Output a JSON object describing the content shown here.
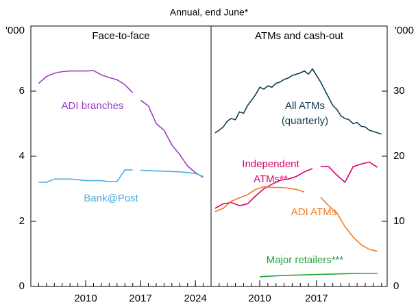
{
  "subtitle": "Annual, end June*",
  "chart_data": [
    {
      "type": "line",
      "title": "Face-to-face",
      "unit": "'000",
      "xlim": [
        2003,
        2026
      ],
      "xticks": [
        2010,
        2017,
        2024
      ],
      "ylim": [
        0,
        8
      ],
      "yticks": [
        0,
        2,
        4,
        6
      ],
      "x": [
        2004,
        2005,
        2006,
        2007,
        2008,
        2009,
        2010,
        2011,
        2012,
        2013,
        2014,
        2015,
        2016,
        2016.5,
        2017,
        2018,
        2019,
        2020,
        2021,
        2022,
        2023,
        2024,
        2025
      ],
      "series": [
        {
          "name": [
            "ADI branches"
          ],
          "color": "#9b3fc0",
          "values": [
            6.24,
            6.45,
            6.55,
            6.6,
            6.62,
            6.62,
            6.62,
            6.63,
            6.5,
            6.42,
            6.35,
            6.2,
            5.95,
            null,
            5.72,
            5.55,
            5.0,
            4.8,
            4.35,
            4.05,
            3.7,
            3.5,
            3.35
          ]
        },
        {
          "name": [
            "Bank@Post"
          ],
          "color": "#4aaee0",
          "values": [
            3.2,
            3.2,
            3.3,
            3.3,
            3.3,
            3.28,
            3.25,
            3.25,
            3.25,
            3.22,
            3.22,
            3.58,
            3.58,
            null,
            3.57,
            3.56,
            3.55,
            3.54,
            3.53,
            3.52,
            3.5,
            3.47,
            3.38
          ]
        }
      ]
    },
    {
      "type": "line",
      "title": "ATMs and cash-out",
      "unit": "'000",
      "xlim": [
        2004,
        2025.7
      ],
      "xticks": [
        2010,
        2017
      ],
      "ylim": [
        0,
        40
      ],
      "yticks": [
        0,
        10,
        20,
        30
      ],
      "series": [
        {
          "name": [
            "All ATMs",
            "(quarterly)"
          ],
          "color": "#0f3c4f",
          "x": [
            2004.5,
            2005,
            2005.5,
            2006,
            2006.5,
            2007,
            2007.5,
            2008,
            2008.5,
            2009,
            2009.5,
            2010,
            2010.5,
            2011,
            2011.5,
            2012,
            2012.5,
            2013,
            2013.5,
            2014,
            2014.5,
            2015,
            2015.5,
            2016,
            2016.5,
            2017,
            2017.5,
            2018,
            2018.5,
            2019,
            2019.5,
            2020,
            2020.5,
            2021,
            2021.5,
            2022,
            2022.5,
            2023,
            2023.5,
            2024,
            2024.5,
            2025
          ],
          "values": [
            23.6,
            24.0,
            24.5,
            25.4,
            25.8,
            25.6,
            26.8,
            26.6,
            27.8,
            28.6,
            29.5,
            30.6,
            30.3,
            30.8,
            30.6,
            31.2,
            31.4,
            31.8,
            32.0,
            32.4,
            32.6,
            32.8,
            33.1,
            32.6,
            33.4,
            32.4,
            31.4,
            30.2,
            29.0,
            27.8,
            27.2,
            26.2,
            25.8,
            25.6,
            25.0,
            25.2,
            24.6,
            24.5,
            24.0,
            23.8,
            23.6,
            23.4
          ]
        },
        {
          "name": [
            "Independent",
            "ATMs**"
          ],
          "color": "#d6006e",
          "x": [
            2004.5,
            2005.5,
            2006.5,
            2007.5,
            2008.5,
            2009.5,
            2010.5,
            2011.5,
            2012.5,
            2013.5,
            2014.5,
            2015.5,
            2016.5,
            2017,
            2017.5,
            2018.5,
            2019.5,
            2020.5,
            2021.5,
            2022.5,
            2023.5,
            2024.5
          ],
          "values": [
            12.0,
            12.7,
            12.9,
            12.4,
            12.7,
            13.9,
            15.0,
            15.7,
            16.3,
            16.5,
            16.9,
            17.6,
            18.1,
            null,
            18.4,
            18.4,
            17.1,
            16.0,
            18.4,
            18.8,
            19.1,
            18.3
          ]
        },
        {
          "name": [
            "ADI ATMs"
          ],
          "color": "#f47b20",
          "x": [
            2004.5,
            2005.5,
            2006.5,
            2007.5,
            2008.5,
            2009.5,
            2010.5,
            2011.5,
            2012.5,
            2013.5,
            2014.5,
            2015.5,
            2016.5,
            2017.5,
            2018.5,
            2019.5,
            2020.5,
            2021.5,
            2022.5,
            2023.5,
            2024.5
          ],
          "values": [
            11.5,
            12.0,
            13.1,
            13.6,
            14.1,
            14.9,
            15.3,
            15.2,
            15.2,
            15.1,
            14.9,
            14.5,
            null,
            13.7,
            12.4,
            11.3,
            9.2,
            7.6,
            6.4,
            5.7,
            5.4
          ]
        },
        {
          "name": [
            "Major retailers***"
          ],
          "color": "#1fa53a",
          "x": [
            2010,
            2013,
            2016,
            2019,
            2022,
            2024.5
          ],
          "values": [
            1.5,
            1.7,
            1.8,
            1.9,
            2.0,
            2.0
          ]
        }
      ]
    }
  ]
}
